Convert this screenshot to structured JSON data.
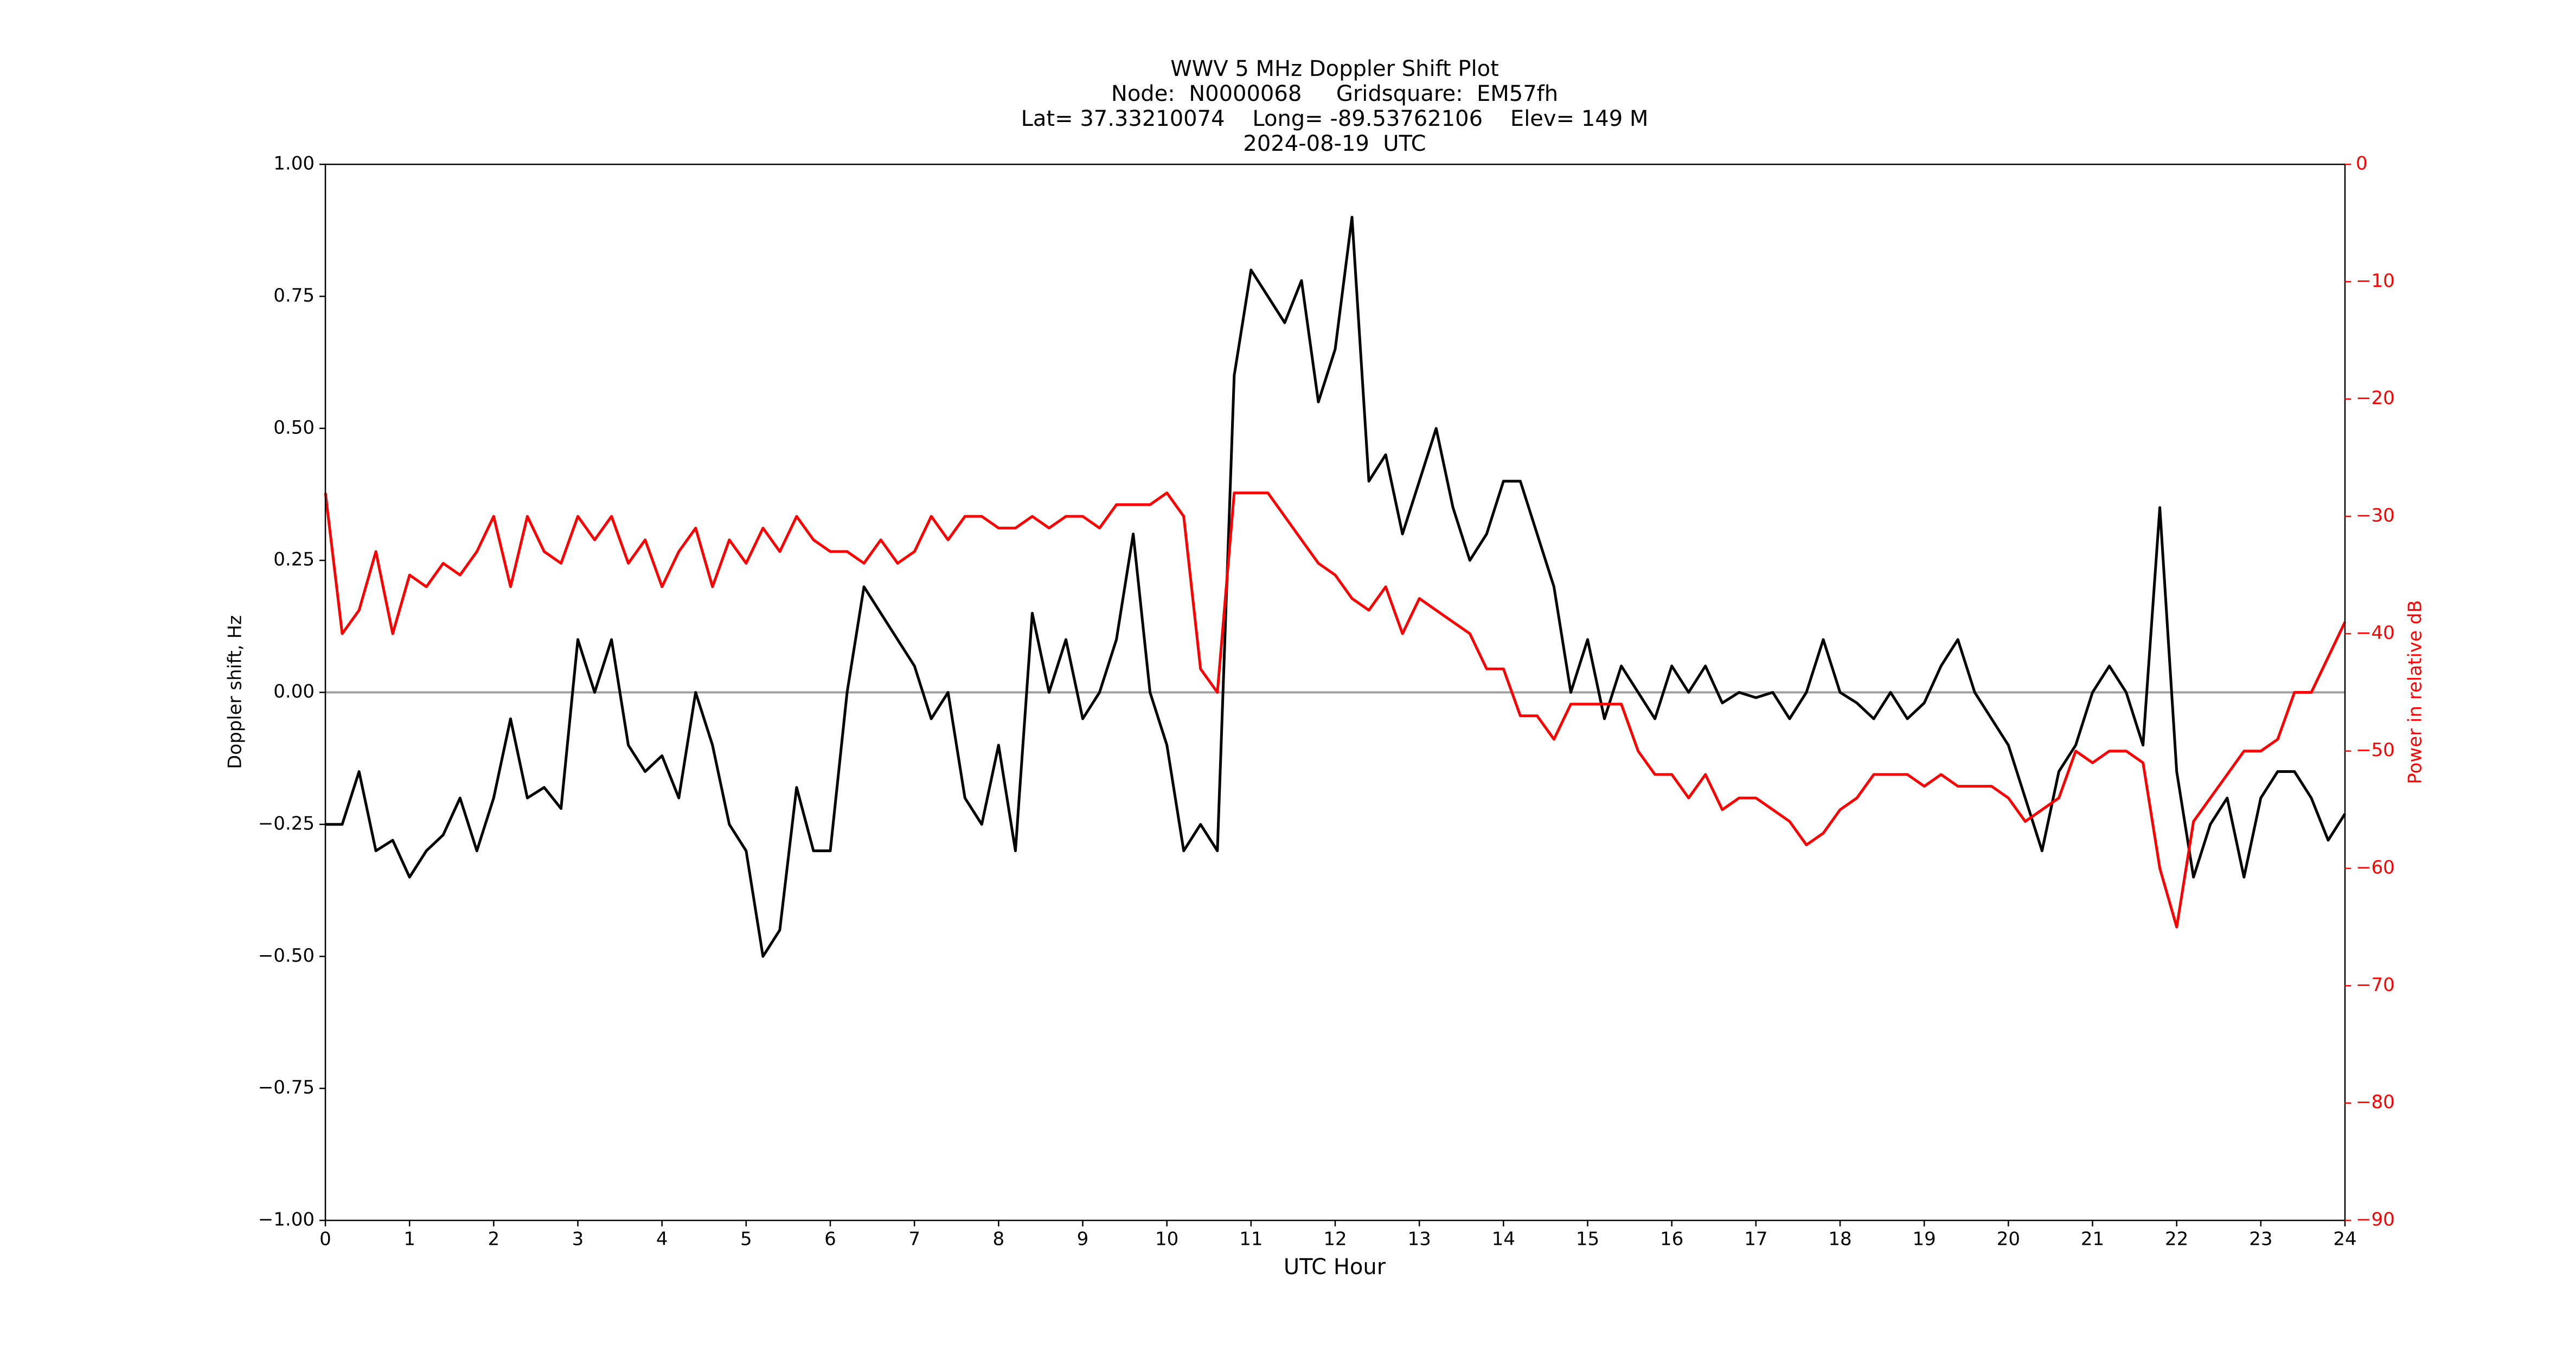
{
  "chart_data": {
    "type": "line",
    "title": [
      "WWV 5 MHz Doppler Shift Plot",
      "Node:  N0000068     Gridsquare:  EM57fh",
      "Lat= 37.33210074    Long= -89.53762106    Elev= 149 M",
      "2024-08-19  UTC"
    ],
    "xlabel": "UTC Hour",
    "ylabel": "Doppler shift, Hz",
    "y2label": "Power in relative dB",
    "x": [
      0,
      0.2,
      0.4,
      0.6,
      0.8,
      1,
      1.2,
      1.4,
      1.6,
      1.8,
      2,
      2.2,
      2.4,
      2.6,
      2.8,
      3,
      3.2,
      3.4,
      3.6,
      3.8,
      4,
      4.2,
      4.4,
      4.6,
      4.8,
      5,
      5.2,
      5.4,
      5.6,
      5.8,
      6,
      6.2,
      6.4,
      6.6,
      6.8,
      7,
      7.2,
      7.4,
      7.6,
      7.8,
      8,
      8.2,
      8.4,
      8.6,
      8.8,
      9,
      9.2,
      9.4,
      9.6,
      9.8,
      10,
      10.2,
      10.4,
      10.6,
      10.8,
      11,
      11.2,
      11.4,
      11.6,
      11.8,
      12,
      12.2,
      12.4,
      12.6,
      12.8,
      13,
      13.2,
      13.4,
      13.6,
      13.8,
      14,
      14.2,
      14.4,
      14.6,
      14.8,
      15,
      15.2,
      15.4,
      15.6,
      15.8,
      16,
      16.2,
      16.4,
      16.6,
      16.8,
      17,
      17.2,
      17.4,
      17.6,
      17.8,
      18,
      18.2,
      18.4,
      18.6,
      18.8,
      19,
      19.2,
      19.4,
      19.6,
      19.8,
      20,
      20.2,
      20.4,
      20.6,
      20.8,
      21,
      21.2,
      21.4,
      21.6,
      21.8,
      22,
      22.2,
      22.4,
      22.6,
      22.8,
      23,
      23.2,
      23.4,
      23.6,
      23.8,
      24
    ],
    "series": [
      {
        "name": "Doppler shift",
        "color": "#000000",
        "values": [
          -0.25,
          -0.25,
          -0.15,
          -0.3,
          -0.28,
          -0.35,
          -0.3,
          -0.27,
          -0.2,
          -0.3,
          -0.2,
          -0.05,
          -0.2,
          -0.18,
          -0.22,
          0.1,
          0.0,
          0.1,
          -0.1,
          -0.15,
          -0.12,
          -0.2,
          0.0,
          -0.1,
          -0.25,
          -0.3,
          -0.5,
          -0.45,
          -0.18,
          -0.3,
          -0.3,
          0.0,
          0.2,
          0.15,
          0.1,
          0.05,
          -0.05,
          0.0,
          -0.2,
          -0.25,
          -0.1,
          -0.3,
          0.15,
          0.0,
          0.1,
          -0.05,
          0.0,
          0.1,
          0.3,
          0.0,
          -0.1,
          -0.3,
          -0.25,
          -0.3,
          0.6,
          0.8,
          0.75,
          0.7,
          0.78,
          0.55,
          0.65,
          0.9,
          0.4,
          0.45,
          0.3,
          0.4,
          0.5,
          0.35,
          0.25,
          0.3,
          0.4,
          0.4,
          0.3,
          0.2,
          0.0,
          0.1,
          -0.05,
          0.05,
          0.0,
          -0.05,
          0.05,
          0.0,
          0.05,
          -0.02,
          0.0,
          -0.01,
          0.0,
          -0.05,
          0.0,
          0.1,
          0.0,
          -0.02,
          -0.05,
          0.0,
          -0.05,
          -0.02,
          0.05,
          0.1,
          0.0,
          -0.05,
          -0.1,
          -0.2,
          -0.3,
          -0.15,
          -0.1,
          0.0,
          0.05,
          0.0,
          -0.1,
          0.35,
          -0.15,
          -0.35,
          -0.25,
          -0.2,
          -0.35,
          -0.2,
          -0.15,
          -0.15,
          -0.2,
          -0.28,
          -0.23
        ]
      },
      {
        "name": "Power",
        "color": "#ff0000",
        "axis": "y2",
        "values": [
          -28,
          -40,
          -38,
          -33,
          -40,
          -35,
          -36,
          -34,
          -35,
          -33,
          -30,
          -36,
          -30,
          -33,
          -34,
          -30,
          -32,
          -30,
          -34,
          -32,
          -36,
          -33,
          -31,
          -36,
          -32,
          -34,
          -31,
          -33,
          -30,
          -32,
          -33,
          -33,
          -34,
          -32,
          -34,
          -33,
          -30,
          -32,
          -30,
          -30,
          -31,
          -31,
          -30,
          -31,
          -30,
          -30,
          -31,
          -29,
          -29,
          -29,
          -28,
          -30,
          -43,
          -45,
          -28,
          -28,
          -28,
          -30,
          -32,
          -34,
          -35,
          -37,
          -38,
          -36,
          -40,
          -37,
          -38,
          -39,
          -40,
          -43,
          -43,
          -47,
          -47,
          -49,
          -46,
          -46,
          -46,
          -46,
          -50,
          -52,
          -52,
          -54,
          -52,
          -55,
          -54,
          -54,
          -55,
          -56,
          -58,
          -57,
          -55,
          -54,
          -52,
          -52,
          -52,
          -53,
          -52,
          -53,
          -53,
          -53,
          -54,
          -56,
          -55,
          -54,
          -50,
          -51,
          -50,
          -50,
          -51,
          -60,
          -65,
          -56,
          -54,
          -52,
          -50,
          -50,
          -49,
          -45,
          -45,
          -42,
          -39
        ]
      }
    ],
    "xlim": [
      0,
      24
    ],
    "xticks": [
      0,
      1,
      2,
      3,
      4,
      5,
      6,
      7,
      8,
      9,
      10,
      11,
      12,
      13,
      14,
      15,
      16,
      17,
      18,
      19,
      20,
      21,
      22,
      23,
      24
    ],
    "ylim": [
      -1,
      1
    ],
    "yticks": [
      {
        "value": -1,
        "label": "−1.00"
      },
      {
        "value": -0.75,
        "label": "−0.75"
      },
      {
        "value": -0.5,
        "label": "−0.50"
      },
      {
        "value": -0.25,
        "label": "−0.25"
      },
      {
        "value": 0,
        "label": "0.00"
      },
      {
        "value": 0.25,
        "label": "0.25"
      },
      {
        "value": 0.5,
        "label": "0.50"
      },
      {
        "value": 0.75,
        "label": "0.75"
      },
      {
        "value": 1,
        "label": "1.00"
      }
    ],
    "y2lim": [
      -90,
      0
    ],
    "y2ticks": [
      {
        "value": -90,
        "label": "−90"
      },
      {
        "value": -80,
        "label": "−80"
      },
      {
        "value": -70,
        "label": "−70"
      },
      {
        "value": -60,
        "label": "−60"
      },
      {
        "value": -50,
        "label": "−50"
      },
      {
        "value": -40,
        "label": "−40"
      },
      {
        "value": -30,
        "label": "−30"
      },
      {
        "value": -20,
        "label": "−20"
      },
      {
        "value": -10,
        "label": "−10"
      },
      0
    ],
    "hline": 0,
    "hline_color": "#a0a0a0",
    "grid": false
  }
}
